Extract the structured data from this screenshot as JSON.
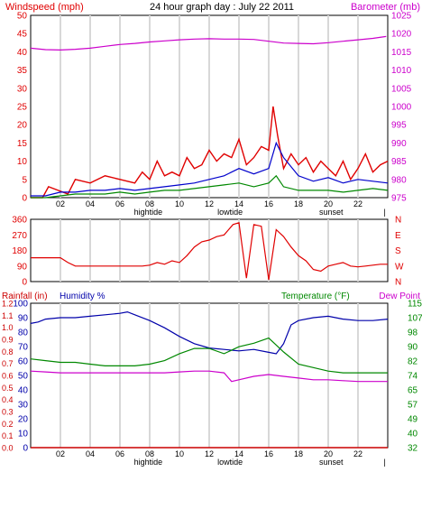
{
  "colors": {
    "wind": "#e00000",
    "baro": "#cc00cc",
    "gust": "#e00000",
    "avg": "#0000cc",
    "green": "#008800",
    "hum": "#0000aa",
    "temp": "#008800",
    "dew": "#cc00cc",
    "rain": "#cc0000",
    "grid": "#d8d8d8",
    "frame": "#000000"
  },
  "chart_data": [
    {
      "type": "line",
      "panel": "wind",
      "title": "24 hour graph day : July 22 2011",
      "ylabel_left": "Windspeed (mph)",
      "ylabel_right": "Barometer (mb)",
      "ylim": [
        0,
        50
      ],
      "y2lim": [
        975,
        1025
      ],
      "yticks": [
        "0",
        "5",
        "10",
        "15",
        "20",
        "25",
        "30",
        "35",
        "40",
        "45",
        "50"
      ],
      "y2ticks": [
        "975",
        "980",
        "985",
        "990",
        "995",
        "1000",
        "1005",
        "1010",
        "1015",
        "1020",
        "1025"
      ],
      "xlim": [
        0,
        24
      ],
      "xticks": [
        "02",
        "04",
        "06",
        "08",
        "10",
        "12",
        "14",
        "16",
        "18",
        "20",
        "22"
      ],
      "xlabels_extra": [
        {
          "text": "hightide",
          "x": 7.9
        },
        {
          "text": "lowtide",
          "x": 13.4
        },
        {
          "text": "sunset",
          "x": 20.2
        },
        {
          "text": "|",
          "x": 23.8
        }
      ],
      "series": [
        {
          "role": "barometer",
          "axis": "right",
          "x": [
            0,
            1,
            2,
            3,
            4,
            5,
            6,
            7,
            8,
            9,
            10,
            11,
            12,
            13,
            14,
            15,
            16,
            17,
            18,
            19,
            20,
            21,
            22,
            23,
            23.9
          ],
          "values": [
            1016.0,
            1015.6,
            1015.5,
            1015.7,
            1016.0,
            1016.5,
            1017.0,
            1017.3,
            1017.7,
            1018.0,
            1018.3,
            1018.5,
            1018.6,
            1018.5,
            1018.5,
            1018.4,
            1017.9,
            1017.4,
            1017.3,
            1017.2,
            1017.5,
            1017.9,
            1018.3,
            1018.7,
            1019.2
          ]
        },
        {
          "role": "gust",
          "axis": "left",
          "x": [
            0,
            0.8,
            1.2,
            2.5,
            3.0,
            4.0,
            5.0,
            6.0,
            7.0,
            7.5,
            8.0,
            8.5,
            9.0,
            9.5,
            10.0,
            10.5,
            11.0,
            11.5,
            12.0,
            12.5,
            13.0,
            13.5,
            14.0,
            14.5,
            15.0,
            15.5,
            16.0,
            16.3,
            16.6,
            17.0,
            17.5,
            18.0,
            18.5,
            19.0,
            19.5,
            20.0,
            20.5,
            21.0,
            21.5,
            22.0,
            22.5,
            23.0,
            23.5,
            24.0
          ],
          "values": [
            0,
            0,
            3,
            1,
            5,
            4,
            6,
            5,
            4,
            7,
            5,
            10,
            6,
            7,
            6,
            11,
            8,
            9,
            13,
            10,
            12,
            11,
            16,
            9,
            11,
            14,
            13,
            25,
            17,
            8,
            12,
            9,
            11,
            7,
            10,
            8,
            6,
            10,
            5,
            8,
            12,
            7,
            9,
            10
          ]
        },
        {
          "role": "average",
          "axis": "left",
          "x": [
            0,
            1,
            2,
            3,
            4,
            5,
            6,
            7,
            8,
            9,
            10,
            11,
            12,
            13,
            14,
            15,
            16,
            16.5,
            17,
            18,
            19,
            20,
            21,
            22,
            23,
            24
          ],
          "values": [
            0.5,
            0.5,
            1.5,
            1.5,
            2,
            2,
            2.5,
            2,
            2.5,
            3,
            3.5,
            4,
            5,
            6,
            8,
            6.5,
            8,
            15,
            11,
            6,
            4.5,
            5.5,
            4,
            5,
            4.5,
            4
          ]
        },
        {
          "role": "direction-low",
          "axis": "left",
          "x": [
            0,
            1,
            2,
            3,
            4,
            5,
            6,
            7,
            8,
            9,
            10,
            11,
            12,
            13,
            14,
            15,
            16,
            16.5,
            17,
            18,
            19,
            20,
            21,
            22,
            23,
            24
          ],
          "values": [
            0,
            0,
            0.5,
            1,
            1,
            1,
            1.5,
            1,
            1.5,
            2,
            2,
            2.5,
            3,
            3.5,
            4,
            3,
            4,
            6,
            3,
            2,
            2,
            2,
            1.5,
            2,
            2.5,
            2
          ]
        }
      ]
    },
    {
      "type": "line",
      "panel": "direction",
      "ylim": [
        0,
        360
      ],
      "yticks": [
        "0",
        "90",
        "180",
        "270",
        "360"
      ],
      "y2ticks": [
        "N",
        "W",
        "S",
        "E",
        "N"
      ],
      "xlim": [
        0,
        24
      ],
      "series": [
        {
          "role": "direction",
          "x": [
            0,
            0.5,
            1.0,
            1.5,
            2.0,
            2.5,
            3.0,
            4.0,
            5.0,
            6.0,
            7.0,
            7.5,
            8.0,
            8.5,
            9.0,
            9.5,
            10.0,
            10.5,
            11.0,
            11.5,
            12.0,
            12.5,
            13.0,
            13.3,
            13.6,
            14.0,
            14.5,
            15.0,
            15.5,
            16.0,
            16.5,
            17.0,
            17.5,
            18.0,
            18.5,
            19.0,
            19.5,
            20.0,
            20.5,
            21.0,
            21.5,
            22.0,
            22.5,
            23.0,
            23.5,
            24.0
          ],
          "values": [
            138,
            138,
            138,
            138,
            138,
            110,
            90,
            90,
            90,
            90,
            90,
            90,
            95,
            110,
            100,
            120,
            110,
            150,
            200,
            230,
            240,
            260,
            270,
            300,
            330,
            340,
            20,
            330,
            320,
            10,
            300,
            260,
            200,
            150,
            120,
            70,
            60,
            90,
            100,
            110,
            90,
            85,
            90,
            95,
            100,
            100
          ]
        }
      ]
    },
    {
      "type": "line",
      "panel": "climate",
      "ylabel_left": "Rainfall (in)",
      "ylabel_left2": "Humidity %",
      "ylabel_right": "Temperature (°F)",
      "ylabel_right2": "Dew Point",
      "ylim": [
        0,
        100
      ],
      "rainticks": [
        "0.0",
        "0.1",
        "0.2",
        "0.3",
        "0.4",
        "0.5",
        "0.6",
        "0.7",
        "0.8",
        "0.9",
        "1.0",
        "1.1",
        "1.2"
      ],
      "humticks": [
        "0",
        "10",
        "20",
        "30",
        "40",
        "50",
        "60",
        "70",
        "80",
        "90",
        "100"
      ],
      "tempticks": [
        "32",
        "40",
        "49",
        "57",
        "65",
        "74",
        "82",
        "90",
        "98",
        "107",
        "115"
      ],
      "templim": [
        32,
        115
      ],
      "xlim": [
        0,
        24
      ],
      "series": [
        {
          "role": "humidity",
          "axis": "humidity",
          "x": [
            0,
            0.5,
            1,
            2,
            3,
            4,
            5,
            6,
            6.5,
            7,
            8,
            9,
            10,
            11,
            12,
            13,
            14,
            15,
            16,
            16.5,
            17,
            17.5,
            18,
            19,
            20,
            21,
            22,
            23,
            24
          ],
          "values": [
            86,
            87,
            89,
            90,
            90,
            91,
            92,
            93,
            94,
            92,
            88,
            83,
            77,
            72,
            69,
            68,
            67,
            68,
            66,
            65,
            72,
            85,
            88,
            90,
            91,
            89,
            88,
            88,
            89
          ]
        },
        {
          "role": "temperature",
          "axis": "temperature",
          "x": [
            0,
            1,
            2,
            3,
            4,
            5,
            6,
            7,
            8,
            9,
            10,
            11,
            12,
            13,
            14,
            15,
            16,
            16.5,
            17,
            18,
            19,
            20,
            21,
            22,
            23,
            24
          ],
          "values": [
            83,
            82,
            81,
            81,
            80,
            79,
            79,
            79,
            80,
            82,
            86,
            89,
            89,
            86,
            90,
            92,
            95,
            91,
            87,
            80,
            78,
            76,
            75,
            75,
            75,
            75
          ]
        },
        {
          "role": "dewpoint",
          "axis": "temperature",
          "x": [
            0,
            1,
            2,
            3,
            4,
            5,
            6,
            7,
            8,
            9,
            10,
            11,
            12,
            13,
            13.5,
            14,
            15,
            16,
            17,
            18,
            19,
            20,
            21,
            22,
            23,
            24
          ],
          "values": [
            76,
            75.5,
            75,
            75,
            75,
            75,
            75,
            75,
            75,
            75,
            75.5,
            76,
            76,
            75,
            70,
            71,
            73,
            74,
            73,
            72,
            71,
            71,
            70.5,
            70,
            70,
            70
          ]
        },
        {
          "role": "rainfall",
          "axis": "rainfall",
          "x": [
            0,
            24
          ],
          "values": [
            0.0,
            0.0
          ]
        }
      ]
    }
  ]
}
